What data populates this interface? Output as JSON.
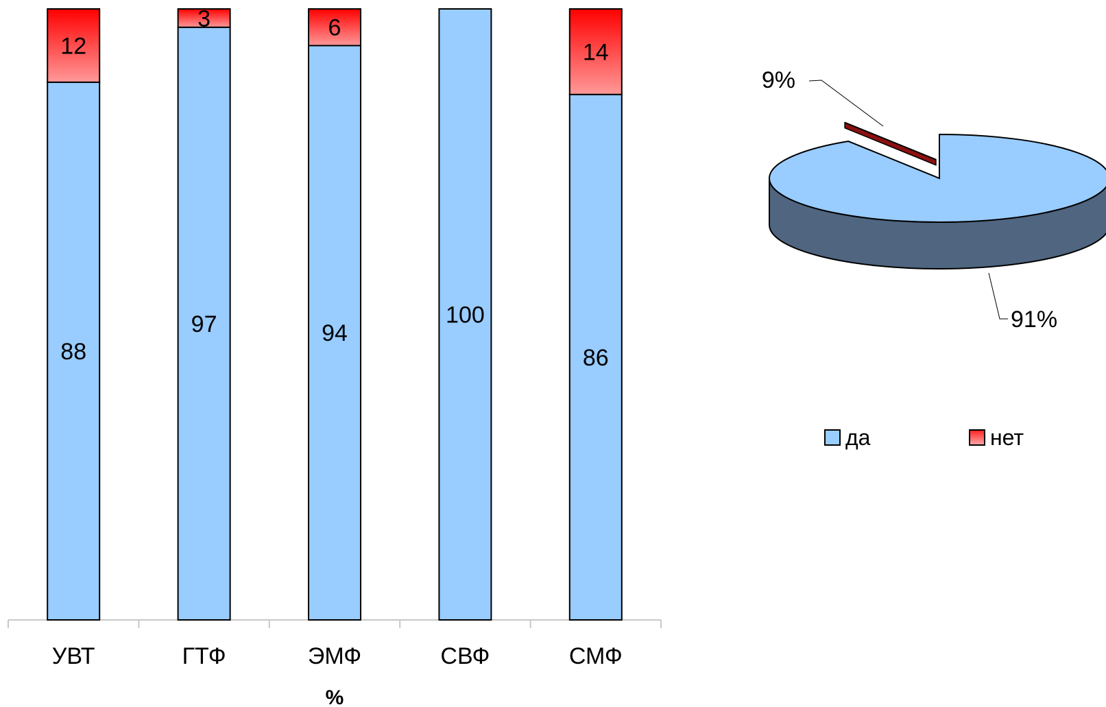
{
  "chart_data": [
    {
      "type": "bar",
      "stacked": true,
      "categories": [
        "УВТ",
        "ГТФ",
        "ЭМФ",
        "СВФ",
        "СМФ"
      ],
      "series": [
        {
          "name": "да",
          "values": [
            88,
            97,
            94,
            100,
            86
          ],
          "color": "#99CCFF"
        },
        {
          "name": "нет",
          "values": [
            12,
            3,
            6,
            0,
            14
          ],
          "color": "#FF3333"
        }
      ],
      "data_labels": [
        [
          "88",
          "97",
          "94",
          "100",
          "86"
        ],
        [
          "12",
          "3",
          "6",
          "",
          "14"
        ]
      ],
      "xlabel": "%",
      "ylim": [
        0,
        100
      ],
      "grid": false,
      "legend": false
    },
    {
      "type": "pie",
      "style": "3d-exploded",
      "labels": [
        "да",
        "нет"
      ],
      "values": [
        91,
        9
      ],
      "value_labels": [
        "91%",
        "9%"
      ],
      "colors": [
        "#99CCFF",
        "#FF3333"
      ],
      "legend": "bottom"
    }
  ],
  "legend": {
    "items": [
      "да",
      "нет"
    ]
  }
}
